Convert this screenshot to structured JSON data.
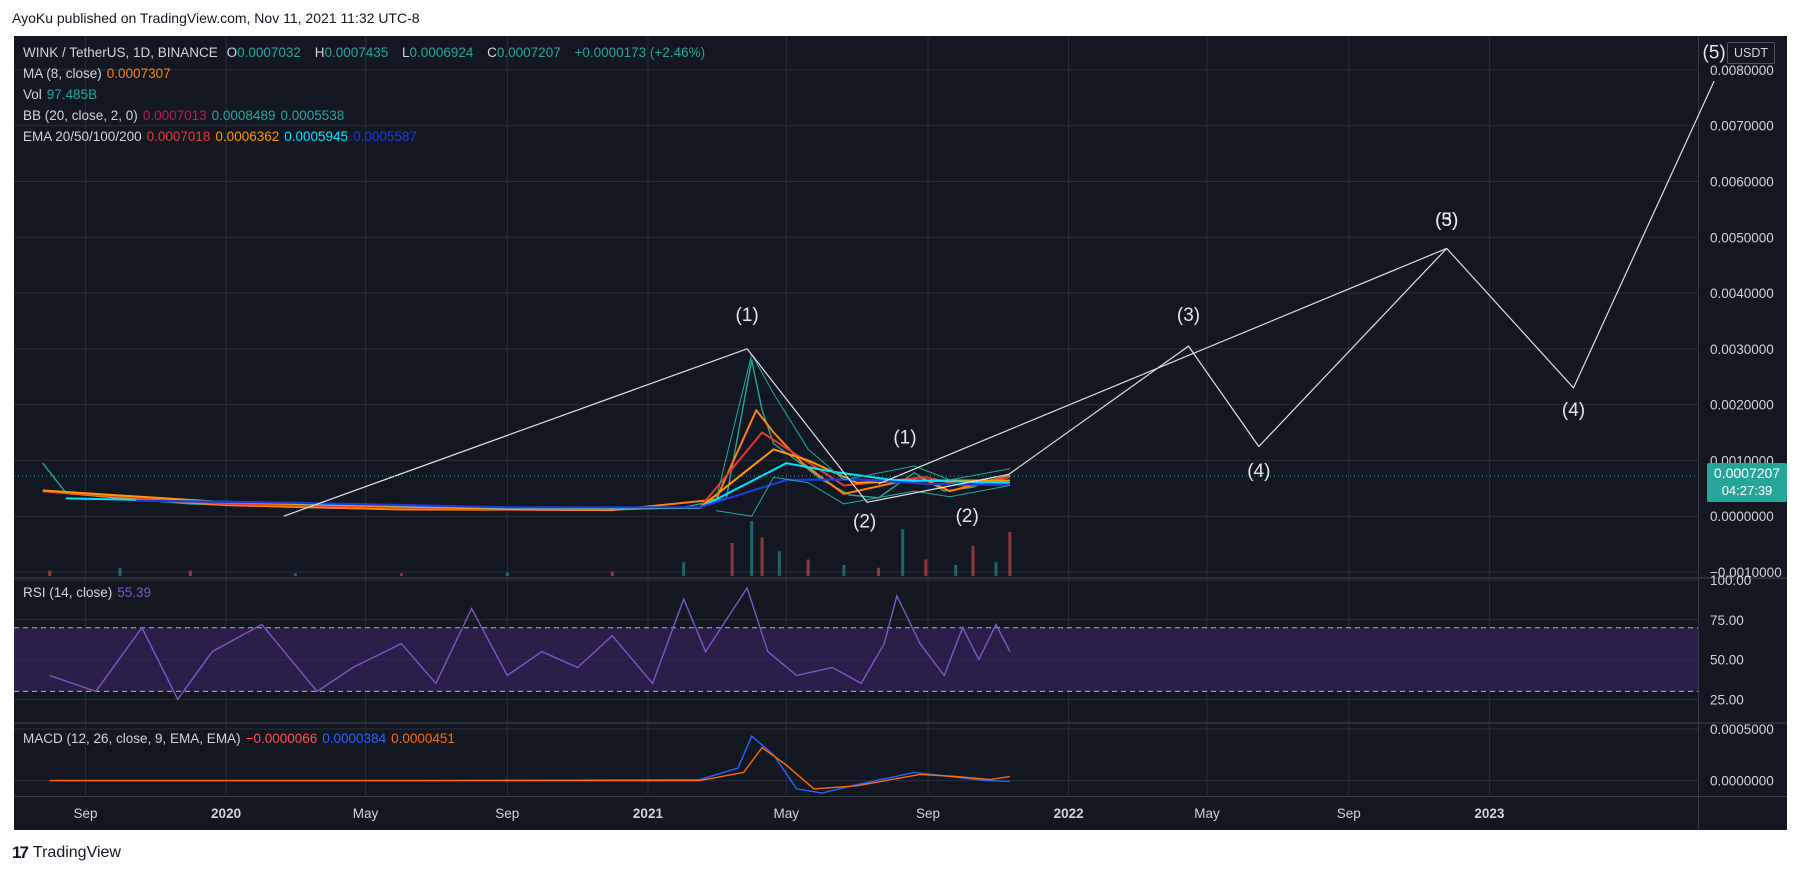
{
  "header": {
    "published": "AyoKu published on TradingView.com, Nov 11, 2021 11:32 UTC-8"
  },
  "footer": {
    "brand_mark": "17",
    "brand": "TradingView"
  },
  "price_legend": {
    "symbol": "WINK / TetherUS, 1D, BINANCE",
    "o_label": "O",
    "o": "0.0007032",
    "h_label": "H",
    "h": "0.0007435",
    "l_label": "L",
    "l": "0.0006924",
    "c_label": "C",
    "c": "0.0007207",
    "change": "+0.0000173 (+2.46%)",
    "ma_label": "MA (8, close)",
    "ma_value": "0.0007307",
    "vol_label": "Vol",
    "vol_value": "97.485B",
    "bb_label": "BB (20, close, 2, 0)",
    "bb_basis": "0.0007013",
    "bb_upper": "0.0008489",
    "bb_lower": "0.0005538",
    "ema_label": "EMA 20/50/100/200",
    "ema_20": "0.0007018",
    "ema_50": "0.0006362",
    "ema_100": "0.0005945",
    "ema_200": "0.0005587"
  },
  "rsi_legend": {
    "label": "RSI (14, close)",
    "value": "55.39"
  },
  "macd_legend": {
    "label": "MACD (12, 26, close, 9, EMA, EMA)",
    "macd": "−0.0000066",
    "signal": "0.0000384",
    "hist": "0.0000451"
  },
  "price_axis": {
    "currency": "USDT",
    "last_price": "0.0007207",
    "countdown": "04:27:39"
  },
  "colors": {
    "background": "#131722",
    "grid": "#2a2e39",
    "text": "#d1d4dc",
    "price_tag": "#26a69a",
    "ma": "#ff7f0e",
    "bb": "#26a69a",
    "bb_basis": "#c2185b",
    "ema_20": "#e53935",
    "ema_50": "#ff9800",
    "ema_100": "#00e5ff",
    "ema_200": "#1e3ad8",
    "rsi": "#7e57c2",
    "rsi_band": "#2b1f4a",
    "macd": "#2962ff",
    "signal": "#ff6d00",
    "wave_line": "#e0e0e0"
  },
  "chart_data": [
    {
      "type": "line",
      "title": "WINK / TetherUS, 1D, BINANCE",
      "xlabel": "",
      "ylabel": "",
      "x_ticks": [
        "Sep",
        "2020",
        "May",
        "Sep",
        "2021",
        "May",
        "Sep",
        "2022",
        "May",
        "Sep",
        "2023"
      ],
      "x_range": [
        "2019-07",
        "2023-07"
      ],
      "ylim": [
        -0.001,
        0.0085
      ],
      "y_ticks": [
        "0.0080000",
        "0.0070000",
        "0.0060000",
        "0.0050000",
        "0.0040000",
        "0.0030000",
        "0.0020000",
        "0.0010000",
        "0.0000000",
        "−0.0010000"
      ],
      "grid": true,
      "series": [
        {
          "name": "Price (close)",
          "x": [
            "2019-07-26",
            "2019-08-15",
            "2019-10-01",
            "2019-12-01",
            "2020-03-01",
            "2020-06-01",
            "2020-09-01",
            "2020-12-01",
            "2021-02-01",
            "2021-03-10",
            "2021-04-01",
            "2021-04-10",
            "2021-04-20",
            "2021-05-10",
            "2021-06-01",
            "2021-06-25",
            "2021-07-20",
            "2021-08-20",
            "2021-09-15",
            "2021-10-10",
            "2021-10-25",
            "2021-11-11"
          ],
          "values": [
            0.00095,
            0.00042,
            0.00032,
            0.00022,
            0.00016,
            0.00012,
            0.00013,
            0.00011,
            0.00016,
            0.00032,
            0.0028,
            0.0019,
            0.0013,
            0.001,
            0.00065,
            0.00038,
            0.00033,
            0.00078,
            0.00045,
            0.00052,
            0.00065,
            0.00072
          ]
        },
        {
          "name": "MA (8, close)",
          "x": [
            "2019-07-26",
            "2019-10-01",
            "2020-01-01",
            "2020-06-01",
            "2020-12-01",
            "2021-03-01",
            "2021-04-05",
            "2021-04-20",
            "2021-05-15",
            "2021-06-20",
            "2021-08-25",
            "2021-09-20",
            "2021-11-11"
          ],
          "values": [
            0.00045,
            0.00033,
            0.0002,
            0.00012,
            0.00011,
            0.0003,
            0.0019,
            0.0015,
            0.00095,
            0.0004,
            0.0007,
            0.00045,
            0.00073
          ]
        },
        {
          "name": "EMA 20",
          "x": [
            "2019-07-26",
            "2020-01-01",
            "2020-09-01",
            "2021-02-15",
            "2021-04-10",
            "2021-05-10",
            "2021-06-20",
            "2021-08-30",
            "2021-10-01",
            "2021-11-11"
          ],
          "values": [
            0.00045,
            0.00022,
            0.00012,
            0.00015,
            0.0015,
            0.0011,
            0.00055,
            0.0007,
            0.00055,
            0.0007
          ]
        },
        {
          "name": "EMA 50",
          "x": [
            "2019-07-26",
            "2020-01-01",
            "2020-09-01",
            "2021-02-15",
            "2021-04-20",
            "2021-05-20",
            "2021-07-01",
            "2021-09-01",
            "2021-11-11"
          ],
          "values": [
            0.00046,
            0.00025,
            0.00013,
            0.00015,
            0.0012,
            0.001,
            0.0006,
            0.00064,
            0.00064
          ]
        },
        {
          "name": "EMA 100",
          "x": [
            "2019-08-15",
            "2020-01-01",
            "2020-09-01",
            "2021-02-15",
            "2021-05-01",
            "2021-06-10",
            "2021-08-01",
            "2021-11-11"
          ],
          "values": [
            0.00032,
            0.00026,
            0.00015,
            0.00015,
            0.00095,
            0.0008,
            0.00065,
            0.0006
          ]
        },
        {
          "name": "EMA 200",
          "x": [
            "2019-10-15",
            "2020-03-01",
            "2020-09-01",
            "2021-02-15",
            "2021-05-01",
            "2021-07-01",
            "2021-09-01",
            "2021-11-11"
          ],
          "values": [
            0.00028,
            0.00024,
            0.00016,
            0.00016,
            0.00065,
            0.00066,
            0.00058,
            0.00056
          ]
        },
        {
          "name": "BB upper",
          "x": [
            "2021-03-01",
            "2021-04-01",
            "2021-04-20",
            "2021-05-20",
            "2021-06-20",
            "2021-08-20",
            "2021-09-20",
            "2021-11-11"
          ],
          "values": [
            0.0003,
            0.0029,
            0.0022,
            0.0012,
            0.00065,
            0.0009,
            0.00065,
            0.00085
          ]
        },
        {
          "name": "BB lower",
          "x": [
            "2021-03-01",
            "2021-04-01",
            "2021-04-20",
            "2021-05-20",
            "2021-06-20",
            "2021-08-20",
            "2021-09-20",
            "2021-11-11"
          ],
          "values": [
            0.0001,
            0.0,
            0.0007,
            0.0006,
            0.00022,
            0.00045,
            0.00035,
            0.00055
          ]
        },
        {
          "name": "Elliott wave projection",
          "x": [
            "2020-02-20",
            "2021-03-28",
            "2021-07-10",
            "2021-11-10",
            "2022-04-15",
            "2022-06-15",
            "2022-11-25",
            "2023-03-15",
            "2023-07-15"
          ],
          "values": [
            0.0,
            0.003,
            0.00025,
            0.00075,
            0.00305,
            0.00125,
            0.0048,
            0.0023,
            0.0078
          ]
        },
        {
          "name": "Elliott wave projection",
          "x": [
            "2021-07-20",
            "2022-11-25"
          ],
          "values": [
            0.00058,
            0.0048
          ]
        }
      ],
      "volume": {
        "x": [
          "2019-08-01",
          "2019-10-01",
          "2019-12-01",
          "2020-03-01",
          "2020-06-01",
          "2020-09-01",
          "2020-12-01",
          "2021-02-01",
          "2021-03-15",
          "2021-04-01",
          "2021-04-10",
          "2021-04-25",
          "2021-05-20",
          "2021-06-20",
          "2021-07-20",
          "2021-08-10",
          "2021-08-30",
          "2021-09-25",
          "2021-10-10",
          "2021-10-30",
          "2021-11-11"
        ],
        "relative": [
          0.1,
          0.15,
          0.1,
          0.05,
          0.05,
          0.06,
          0.08,
          0.25,
          0.6,
          1.0,
          0.7,
          0.45,
          0.3,
          0.2,
          0.15,
          0.85,
          0.3,
          0.2,
          0.55,
          0.25,
          0.8
        ]
      },
      "annotations": [
        {
          "text": "(1)",
          "x": "2021-03-28",
          "y": 0.0035
        },
        {
          "text": "(2)",
          "x": "2021-07-08",
          "y": -0.0002
        },
        {
          "text": "(1)",
          "x": "2021-08-12",
          "y": 0.0013
        },
        {
          "text": "(2)",
          "x": "2021-10-05",
          "y": -0.0001
        },
        {
          "text": "(3)",
          "x": "2022-04-15",
          "y": 0.0035
        },
        {
          "text": "(4)",
          "x": "2022-06-15",
          "y": 0.0007
        },
        {
          "text": "(3)",
          "x": "2022-11-25",
          "y": 0.0052
        },
        {
          "text": "(5)",
          "x": "2022-11-25",
          "y": 0.0052
        },
        {
          "text": "(4)",
          "x": "2023-03-15",
          "y": 0.0018
        },
        {
          "text": "(5)",
          "x": "2023-07-15",
          "y": 0.0082
        }
      ]
    },
    {
      "type": "line",
      "title": "RSI (14, close)",
      "ylim": [
        12,
        100
      ],
      "y_ticks": [
        "100.00",
        "75.00",
        "50.00",
        "25.00"
      ],
      "bands": [
        30,
        70
      ],
      "grid": true,
      "series": [
        {
          "name": "RSI",
          "x": [
            "2019-08-01",
            "2019-09-10",
            "2019-10-20",
            "2019-11-20",
            "2019-12-20",
            "2020-02-01",
            "2020-03-20",
            "2020-04-20",
            "2020-06-01",
            "2020-07-01",
            "2020-08-01",
            "2020-09-01",
            "2020-10-01",
            "2020-11-01",
            "2020-12-01",
            "2021-01-05",
            "2021-02-01",
            "2021-02-20",
            "2021-03-10",
            "2021-03-28",
            "2021-04-15",
            "2021-05-10",
            "2021-06-10",
            "2021-07-05",
            "2021-07-25",
            "2021-08-05",
            "2021-08-25",
            "2021-09-15",
            "2021-10-01",
            "2021-10-15",
            "2021-10-30",
            "2021-11-11"
          ],
          "values": [
            40,
            30,
            70,
            25,
            55,
            72,
            30,
            45,
            60,
            35,
            82,
            40,
            55,
            45,
            65,
            35,
            88,
            55,
            75,
            95,
            55,
            40,
            45,
            35,
            60,
            90,
            60,
            40,
            70,
            50,
            72,
            55
          ]
        }
      ]
    },
    {
      "type": "line",
      "title": "MACD (12, 26, close, 9, EMA, EMA)",
      "ylim": [
        -0.00012,
        0.0005
      ],
      "y_ticks": [
        "0.0005000",
        "0.0000000"
      ],
      "grid": true,
      "series": [
        {
          "name": "MACD",
          "x": [
            "2019-08-01",
            "2020-06-01",
            "2021-02-15",
            "2021-03-20",
            "2021-04-01",
            "2021-04-20",
            "2021-05-10",
            "2021-06-01",
            "2021-07-01",
            "2021-08-20",
            "2021-09-20",
            "2021-10-20",
            "2021-11-11"
          ],
          "values": [
            0.0,
            0.0,
            1e-05,
            0.00012,
            0.00043,
            0.00025,
            -8e-05,
            -0.00012,
            -4e-05,
            8e-05,
            4e-05,
            0.0,
            -6.6e-06
          ]
        },
        {
          "name": "Signal",
          "x": [
            "2019-08-01",
            "2020-06-01",
            "2021-02-15",
            "2021-03-25",
            "2021-04-10",
            "2021-05-01",
            "2021-05-25",
            "2021-07-01",
            "2021-08-25",
            "2021-09-25",
            "2021-10-25",
            "2021-11-11"
          ],
          "values": [
            0.0,
            0.0,
            0.0,
            8e-05,
            0.00032,
            0.00015,
            -8e-05,
            -5e-05,
            6e-05,
            4e-05,
            1e-05,
            3.84e-05
          ]
        }
      ]
    }
  ]
}
